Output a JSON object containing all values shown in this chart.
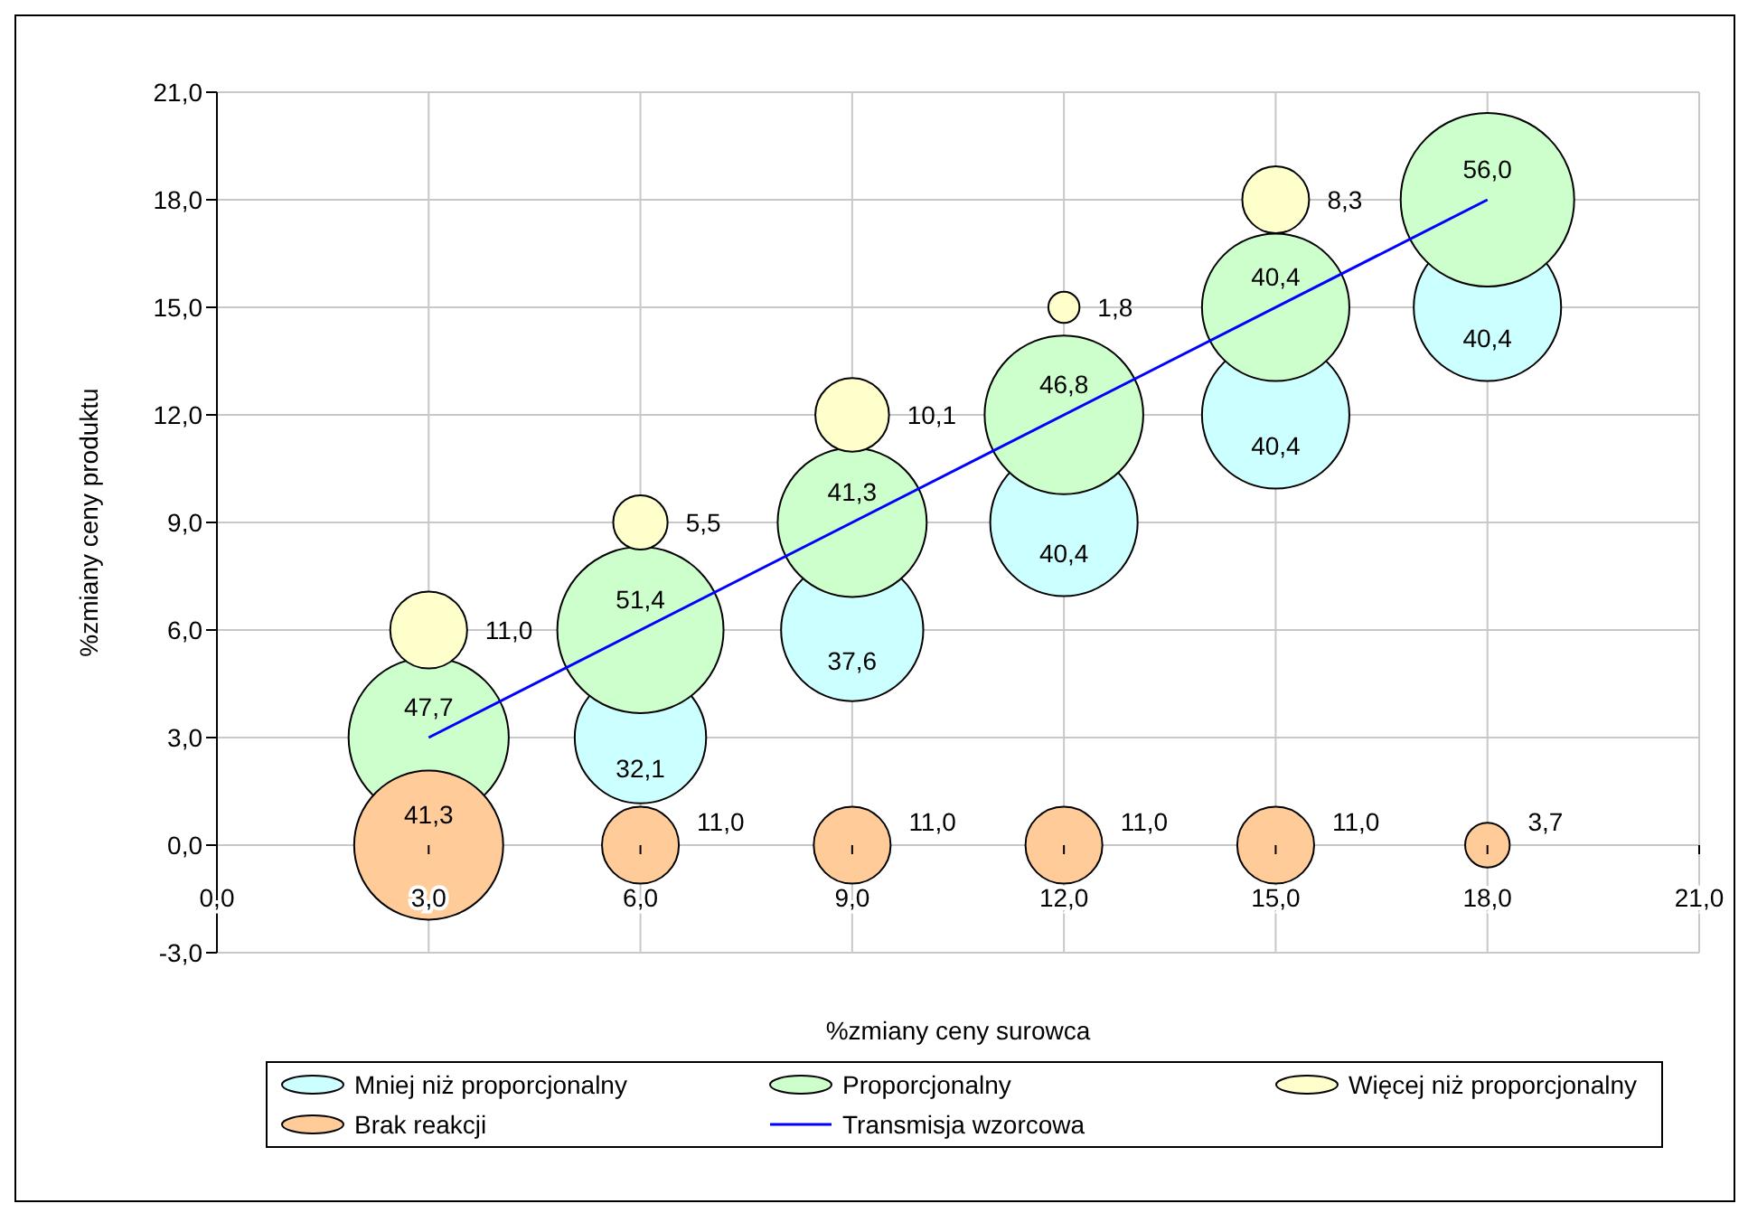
{
  "chart_data": {
    "type": "bubble",
    "xlabel": "%zmiany ceny surowca",
    "ylabel": "%zmiany ceny produktu",
    "xlim": [
      0,
      21
    ],
    "xticks": [
      {
        "value": 0,
        "label": "0,0"
      },
      {
        "value": 3,
        "label": "3,0"
      },
      {
        "value": 6,
        "label": "6,0"
      },
      {
        "value": 9,
        "label": "9,0"
      },
      {
        "value": 12,
        "label": "12,0"
      },
      {
        "value": 15,
        "label": "15,0"
      },
      {
        "value": 18,
        "label": "18,0"
      },
      {
        "value": 21,
        "label": "21,0"
      }
    ],
    "ylim": [
      -3,
      21
    ],
    "yticks": [
      {
        "value": -3,
        "label": "-3,0"
      },
      {
        "value": 0,
        "label": "0,0"
      },
      {
        "value": 3,
        "label": "3,0"
      },
      {
        "value": 6,
        "label": "6,0"
      },
      {
        "value": 9,
        "label": "9,0"
      },
      {
        "value": 12,
        "label": "12,0"
      },
      {
        "value": 15,
        "label": "15,0"
      },
      {
        "value": 18,
        "label": "18,0"
      },
      {
        "value": 21,
        "label": "21,0"
      }
    ],
    "grid": true,
    "legend": "bottom",
    "series": [
      {
        "name": "Mniej niż proporcjonalny",
        "color": "#ccffff",
        "x": [
          6,
          9,
          12,
          15,
          18
        ],
        "values": [
          3,
          6,
          9,
          12,
          15
        ],
        "sizes": [
          32.1,
          37.6,
          40.4,
          40.4,
          40.4
        ],
        "value_labels": [
          "32,1",
          "37,6",
          "40,4",
          "40,4",
          "40,4"
        ]
      },
      {
        "name": "Proporcjonalny",
        "color": "#ccffcc",
        "x": [
          3,
          6,
          9,
          12,
          15,
          18
        ],
        "values": [
          3,
          6,
          9,
          12,
          15,
          18
        ],
        "sizes": [
          47.7,
          51.4,
          41.3,
          46.8,
          40.4,
          56.0
        ],
        "value_labels": [
          "47,7",
          "51,4",
          "41,3",
          "46,8",
          "40,4",
          "56,0"
        ]
      },
      {
        "name": "Więcej niż proporcjonalny",
        "color": "#ffffcc",
        "x": [
          3,
          6,
          9,
          12,
          15
        ],
        "values": [
          6,
          9,
          12,
          15,
          18
        ],
        "sizes": [
          11.0,
          5.5,
          10.1,
          1.8,
          8.3
        ],
        "value_labels": [
          "11,0",
          "5,5",
          "10,1",
          "1,8",
          "8,3"
        ]
      },
      {
        "name": "Brak reakcji",
        "color": "#ffcc99",
        "x": [
          3,
          6,
          9,
          12,
          15,
          18
        ],
        "values": [
          0,
          0,
          0,
          0,
          0,
          0
        ],
        "sizes": [
          41.3,
          11.0,
          11.0,
          11.0,
          11.0,
          3.7
        ],
        "value_labels": [
          "41,3",
          "11,0",
          "11,0",
          "11,0",
          "11,0",
          "3,7"
        ]
      },
      {
        "name": "Transmisja wzorcowa",
        "type": "line",
        "color": "#0000ff",
        "marker": "none",
        "x": [
          3,
          18
        ],
        "values": [
          3,
          18
        ]
      }
    ]
  }
}
